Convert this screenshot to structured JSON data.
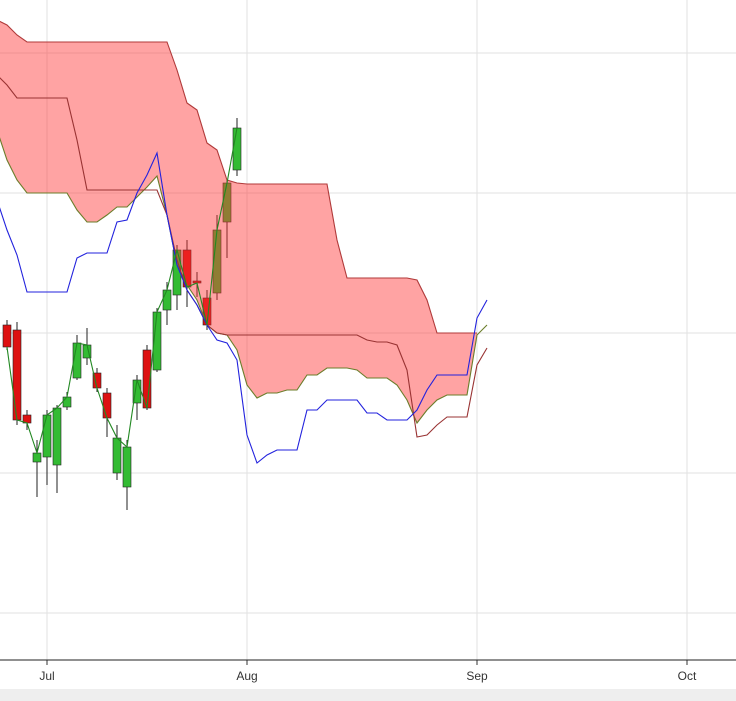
{
  "chart_data": {
    "type": "candlestick",
    "categories": [
      null,
      null,
      null,
      null,
      null,
      "Jul",
      null,
      null,
      null,
      null,
      null,
      null,
      null,
      null,
      null,
      null,
      null,
      null,
      null,
      null,
      null,
      null,
      null,
      null,
      null,
      "Aug",
      null,
      null,
      null,
      null,
      null,
      null,
      null,
      null,
      null,
      null,
      null,
      null,
      null,
      null,
      null,
      null,
      null,
      null,
      null,
      null,
      null,
      null,
      "Sep",
      null,
      null,
      null,
      null,
      null,
      null,
      null,
      null,
      null,
      null,
      null,
      null,
      null,
      null,
      null,
      null,
      null,
      null,
      null,
      null,
      "Oct"
    ],
    "candles": {
      "up_color": "#33bb33",
      "down_color": "#dd1111",
      "open": [
        null,
        335,
        330,
        245,
        198,
        203,
        195,
        253,
        282,
        302,
        287,
        267,
        187,
        173,
        257,
        310,
        290,
        350,
        365,
        410,
        379,
        362,
        367,
        438,
        490,
        null,
        null,
        null,
        null,
        null,
        null,
        null,
        null,
        null,
        null,
        null,
        null,
        null,
        null,
        null,
        null,
        null,
        null,
        null,
        null,
        null,
        null,
        null,
        null,
        null,
        null,
        null,
        null,
        null,
        null,
        null,
        null,
        null,
        null,
        null,
        null,
        null,
        null,
        null,
        null,
        null,
        null,
        null,
        null,
        null
      ],
      "high": [
        null,
        340,
        338,
        250,
        220,
        250,
        255,
        268,
        325,
        332,
        292,
        272,
        235,
        220,
        285,
        315,
        352,
        378,
        415,
        420,
        388,
        370,
        445,
        480,
        542,
        null,
        null,
        null,
        null,
        null,
        null,
        null,
        null,
        null,
        null,
        null,
        null,
        null,
        null,
        null,
        null,
        null,
        null,
        null,
        null,
        null,
        null,
        null,
        null,
        null,
        null,
        null,
        null,
        null,
        null,
        null,
        null,
        null,
        null,
        null,
        null,
        null,
        null,
        null,
        null,
        null,
        null,
        null,
        null,
        null
      ],
      "low": [
        null,
        310,
        235,
        230,
        163,
        175,
        167,
        250,
        280,
        295,
        268,
        223,
        180,
        150,
        240,
        250,
        288,
        335,
        350,
        353,
        363,
        330,
        360,
        402,
        484,
        null,
        null,
        null,
        null,
        null,
        null,
        null,
        null,
        null,
        null,
        null,
        null,
        null,
        null,
        null,
        null,
        null,
        null,
        null,
        null,
        null,
        null,
        null,
        null,
        null,
        null,
        null,
        null,
        null,
        null,
        null,
        null,
        null,
        null,
        null,
        null,
        null,
        null,
        null,
        null,
        null,
        null,
        null,
        null,
        null
      ],
      "close": [
        null,
        313,
        240,
        237,
        207,
        245,
        252,
        263,
        317,
        315,
        272,
        242,
        222,
        213,
        280,
        252,
        348,
        370,
        410,
        373,
        377,
        335,
        430,
        477,
        532,
        null,
        null,
        null,
        null,
        null,
        null,
        null,
        null,
        null,
        null,
        null,
        null,
        null,
        null,
        null,
        null,
        null,
        null,
        null,
        null,
        null,
        null,
        null,
        null,
        null,
        null,
        null,
        null,
        null,
        null,
        null,
        null,
        null,
        null,
        null,
        null,
        null,
        null,
        null,
        null,
        null,
        null,
        null,
        null,
        null
      ]
    },
    "cloud": {
      "fill": "#ff3333",
      "between": [
        0,
        1
      ]
    },
    "series": [
      {
        "color": "#b03a3a",
        "values": [
          640,
          635,
          625,
          618,
          618,
          618,
          618,
          618,
          618,
          618,
          618,
          618,
          618,
          618,
          618,
          618,
          618,
          618,
          590,
          557,
          550,
          517,
          510,
          480,
          477,
          476,
          476,
          476,
          476,
          476,
          476,
          476,
          476,
          476,
          420,
          382,
          382,
          382,
          382,
          382,
          382,
          382,
          380,
          360,
          327,
          327,
          327,
          327,
          327,
          null,
          null,
          null,
          null,
          null,
          null,
          null,
          null,
          null,
          null,
          null,
          null,
          null,
          null,
          null,
          null,
          null,
          null,
          null,
          null,
          null
        ]
      },
      {
        "color": "#6b7d2a",
        "values": [
          530,
          500,
          480,
          467,
          467,
          467,
          467,
          467,
          450,
          438,
          438,
          445,
          453,
          453,
          463,
          473,
          484,
          445,
          395,
          375,
          360,
          335,
          327,
          325,
          310,
          275,
          262,
          267,
          267,
          270,
          270,
          285,
          285,
          292,
          292,
          292,
          290,
          282,
          282,
          282,
          275,
          260,
          237,
          250,
          260,
          265,
          265,
          265,
          325,
          335,
          null,
          null,
          null,
          null,
          null,
          null,
          null,
          null,
          null,
          null,
          null,
          null,
          null,
          null,
          null,
          null,
          null,
          null,
          null,
          null
        ]
      },
      {
        "color": "#993333",
        "values": [
          585,
          575,
          562,
          562,
          562,
          562,
          562,
          562,
          520,
          470,
          470,
          470,
          470,
          470,
          470,
          470,
          470,
          445,
          400,
          370,
          355,
          335,
          327,
          325,
          325,
          325,
          325,
          325,
          325,
          325,
          325,
          325,
          325,
          325,
          325,
          325,
          325,
          320,
          318,
          318,
          315,
          290,
          223,
          225,
          235,
          243,
          243,
          243,
          295,
          312,
          null,
          null,
          null,
          null,
          null,
          null,
          null,
          null,
          null,
          null,
          null,
          null,
          null,
          null,
          null,
          null,
          null,
          null,
          null,
          null
        ]
      },
      {
        "color": "#2222dd",
        "values": [
          460,
          430,
          405,
          368,
          368,
          368,
          368,
          368,
          402,
          407,
          407,
          407,
          438,
          440,
          467,
          485,
          507,
          445,
          395,
          370,
          355,
          335,
          320,
          317,
          300,
          225,
          197,
          205,
          210,
          210,
          210,
          250,
          250,
          260,
          260,
          260,
          260,
          247,
          247,
          240,
          240,
          240,
          250,
          270,
          285,
          285,
          285,
          285,
          342,
          360,
          null,
          null,
          null,
          null,
          null,
          null,
          null,
          null,
          null,
          null,
          null,
          null,
          null,
          null,
          null,
          null,
          null,
          null,
          null,
          null
        ]
      },
      {
        "color": "#228822",
        "values": [
          null,
          313,
          240,
          237,
          207,
          245,
          252,
          263,
          317,
          315,
          272,
          242,
          222,
          213,
          280,
          252,
          348,
          370,
          410,
          373,
          377,
          335,
          430,
          477,
          532,
          null,
          null,
          null,
          null,
          null,
          null,
          null,
          null,
          null,
          null,
          null,
          null,
          null,
          null,
          null,
          null,
          null,
          null,
          null,
          null,
          null,
          null,
          null,
          null,
          null,
          null,
          null,
          null,
          null,
          null,
          null,
          null,
          null,
          null,
          null,
          null,
          null,
          null,
          null,
          null,
          null,
          null,
          null,
          null,
          null
        ]
      }
    ],
    "ylim": [
      0,
      660
    ],
    "yticks": [
      47,
      187,
      327,
      467,
      607
    ],
    "grid": true
  }
}
